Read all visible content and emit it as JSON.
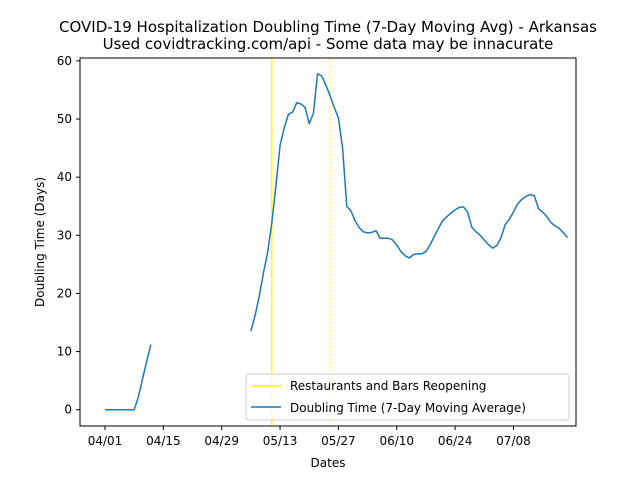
{
  "chart_data": {
    "type": "line",
    "title": "COVID-19 Hospitalization Doubling Time (7-Day Moving Avg) - Arkansas",
    "subtitle": "Used covidtracking.com/api - Some data may be innacurate",
    "xlabel": "Dates",
    "ylabel": "Doubling Time (Days)",
    "xlim": [
      "2020-03-26",
      "2020-07-23"
    ],
    "ylim": [
      -2.8,
      60.5
    ],
    "xticks": [
      {
        "date": "2020-04-01",
        "label": "04/01"
      },
      {
        "date": "2020-04-15",
        "label": "04/15"
      },
      {
        "date": "2020-04-29",
        "label": "04/29"
      },
      {
        "date": "2020-05-13",
        "label": "05/13"
      },
      {
        "date": "2020-05-27",
        "label": "05/27"
      },
      {
        "date": "2020-06-10",
        "label": "06/10"
      },
      {
        "date": "2020-06-24",
        "label": "06/24"
      },
      {
        "date": "2020-07-08",
        "label": "07/08"
      }
    ],
    "yticks": [
      0,
      10,
      20,
      30,
      40,
      50,
      60
    ],
    "grid": false,
    "legend_position": "lower right",
    "events": [
      {
        "name": "Restaurants and Bars Reopening",
        "date": "2020-05-11",
        "style": "solid",
        "color": "#ffff00"
      },
      {
        "name": "",
        "date": "2020-05-25",
        "style": "dotted",
        "color": "#ffff00"
      }
    ],
    "series": [
      {
        "name": "Doubling Time (7-Day Moving Average)",
        "color": "#1f77b4",
        "segments": [
          [
            [
              "2020-04-01",
              0
            ],
            [
              "2020-04-02",
              0
            ],
            [
              "2020-04-03",
              0
            ],
            [
              "2020-04-04",
              0
            ],
            [
              "2020-04-05",
              0
            ],
            [
              "2020-04-06",
              0
            ],
            [
              "2020-04-07",
              0
            ],
            [
              "2020-04-08",
              0
            ],
            [
              "2020-04-09",
              2.2
            ],
            [
              "2020-04-10",
              5.3
            ],
            [
              "2020-04-11",
              8.3
            ],
            [
              "2020-04-12",
              11.2
            ]
          ],
          [
            [
              "2020-05-06",
              13.5
            ],
            [
              "2020-05-07",
              16.2
            ],
            [
              "2020-05-08",
              19.5
            ],
            [
              "2020-05-09",
              23.5
            ],
            [
              "2020-05-10",
              27.0
            ],
            [
              "2020-05-11",
              32.0
            ],
            [
              "2020-05-12",
              38.5
            ],
            [
              "2020-05-13",
              45.5
            ],
            [
              "2020-05-14",
              48.5
            ],
            [
              "2020-05-15",
              50.8
            ],
            [
              "2020-05-16",
              51.2
            ],
            [
              "2020-05-17",
              52.8
            ],
            [
              "2020-05-18",
              52.6
            ],
            [
              "2020-05-19",
              52.0
            ],
            [
              "2020-05-20",
              49.2
            ],
            [
              "2020-05-21",
              51.0
            ],
            [
              "2020-05-22",
              57.8
            ],
            [
              "2020-05-23",
              57.4
            ],
            [
              "2020-05-24",
              55.8
            ],
            [
              "2020-05-25",
              54.0
            ],
            [
              "2020-05-26",
              52.0
            ],
            [
              "2020-05-27",
              50.2
            ],
            [
              "2020-05-28",
              45.0
            ],
            [
              "2020-05-29",
              35.0
            ],
            [
              "2020-05-30",
              34.2
            ],
            [
              "2020-05-31",
              32.5
            ],
            [
              "2020-06-01",
              31.3
            ],
            [
              "2020-06-02",
              30.6
            ],
            [
              "2020-06-03",
              30.4
            ],
            [
              "2020-06-04",
              30.5
            ],
            [
              "2020-06-05",
              30.8
            ],
            [
              "2020-06-06",
              29.5
            ],
            [
              "2020-06-07",
              29.5
            ],
            [
              "2020-06-08",
              29.5
            ],
            [
              "2020-06-09",
              29.2
            ],
            [
              "2020-06-10",
              28.3
            ],
            [
              "2020-06-11",
              27.2
            ],
            [
              "2020-06-12",
              26.5
            ],
            [
              "2020-06-13",
              26.1
            ],
            [
              "2020-06-14",
              26.7
            ],
            [
              "2020-06-15",
              26.8
            ],
            [
              "2020-06-16",
              26.8
            ],
            [
              "2020-06-17",
              27.2
            ],
            [
              "2020-06-18",
              28.4
            ],
            [
              "2020-06-19",
              29.8
            ],
            [
              "2020-06-20",
              31.2
            ],
            [
              "2020-06-21",
              32.5
            ],
            [
              "2020-06-22",
              33.2
            ],
            [
              "2020-06-23",
              33.8
            ],
            [
              "2020-06-24",
              34.4
            ],
            [
              "2020-06-25",
              34.8
            ],
            [
              "2020-06-26",
              34.9
            ],
            [
              "2020-06-27",
              34.0
            ],
            [
              "2020-06-28",
              31.4
            ],
            [
              "2020-06-29",
              30.6
            ],
            [
              "2020-06-30",
              30.0
            ],
            [
              "2020-07-01",
              29.2
            ],
            [
              "2020-07-02",
              28.4
            ],
            [
              "2020-07-03",
              27.8
            ],
            [
              "2020-07-04",
              28.2
            ],
            [
              "2020-07-05",
              29.6
            ],
            [
              "2020-07-06",
              31.8
            ],
            [
              "2020-07-07",
              32.8
            ],
            [
              "2020-07-08",
              34.0
            ],
            [
              "2020-07-09",
              35.4
            ],
            [
              "2020-07-10",
              36.2
            ],
            [
              "2020-07-11",
              36.7
            ],
            [
              "2020-07-12",
              37.0
            ],
            [
              "2020-07-13",
              36.8
            ],
            [
              "2020-07-14",
              34.6
            ],
            [
              "2020-07-15",
              34.0
            ],
            [
              "2020-07-16",
              33.2
            ],
            [
              "2020-07-17",
              32.2
            ],
            [
              "2020-07-18",
              31.6
            ],
            [
              "2020-07-19",
              31.2
            ],
            [
              "2020-07-20",
              30.4
            ],
            [
              "2020-07-21",
              29.6
            ]
          ]
        ]
      }
    ]
  }
}
